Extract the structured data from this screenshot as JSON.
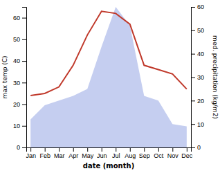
{
  "chart_data": {
    "type": "line",
    "xlabel": "date (month)",
    "ylabel": "max temp (C)",
    "y2label": "med. precipitation (kg/m2)",
    "categories": [
      "Jan",
      "Feb",
      "Mar",
      "Apr",
      "May",
      "Jun",
      "Jul",
      "Aug",
      "Sep",
      "Oct",
      "Nov",
      "Dec"
    ],
    "series": [
      {
        "type": "area",
        "color": "#c5cef0",
        "axis": "y2",
        "values": [
          12,
          18,
          20,
          22,
          25,
          43,
          60,
          52,
          22,
          20,
          10,
          9
        ]
      },
      {
        "type": "line",
        "color": "#c0392b",
        "values": [
          24,
          25,
          28,
          38,
          52,
          63,
          62,
          57,
          38,
          36,
          34,
          27
        ]
      }
    ],
    "ylim": [
      0,
      65
    ],
    "yticks": [
      0,
      10,
      20,
      30,
      40,
      50,
      60
    ],
    "y2lim": [
      0,
      60
    ],
    "y2ticks": [
      0,
      10,
      20,
      30,
      40,
      50,
      60
    ],
    "grid": false
  }
}
